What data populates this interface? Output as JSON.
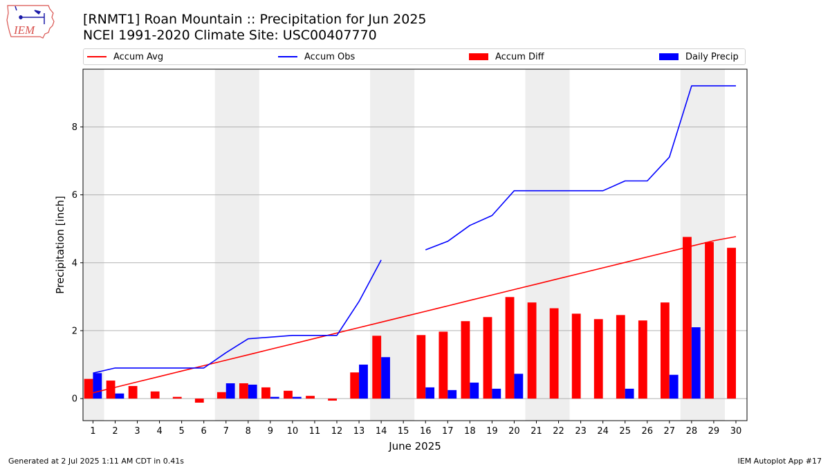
{
  "header": {
    "title_line1": "[RNMT1] Roan Mountain :: Precipitation for Jun 2025",
    "title_line2": "NCEI 1991-2020 Climate Site: USC00407770"
  },
  "logo": {
    "text": "IEM",
    "icon": "iowa-state-outline-logo"
  },
  "legend": {
    "accum_avg": "Accum Avg",
    "accum_obs": "Accum Obs",
    "accum_diff": "Accum Diff",
    "daily_precip": "Daily Precip"
  },
  "footer": {
    "left": "Generated at 2 Jul 2025 1:11 AM CDT in 0.41s",
    "right": "IEM Autoplot App #17"
  },
  "colors": {
    "accum_avg": "#ff0000",
    "accum_obs": "#0000ff",
    "accum_diff": "#ff0000",
    "daily_precip": "#0000ff",
    "weekend_shade": "#eeeeee",
    "grid": "#b0b0b0"
  },
  "chart_data": {
    "type": "bar",
    "xlabel": "June 2025",
    "ylabel": "Precipitation [inch]",
    "ylim": [
      -0.65,
      9.7
    ],
    "xlim": [
      0.55,
      30.5
    ],
    "yticks": [
      0,
      2,
      4,
      6,
      8
    ],
    "grid": "horizontal",
    "legend_placement": "top",
    "days": [
      1,
      2,
      3,
      4,
      5,
      6,
      7,
      8,
      9,
      10,
      11,
      12,
      13,
      14,
      15,
      16,
      17,
      18,
      19,
      20,
      21,
      22,
      23,
      24,
      25,
      26,
      27,
      28,
      29,
      30
    ],
    "weekend_day_groups": [
      [
        1
      ],
      [
        7,
        8
      ],
      [
        14,
        15
      ],
      [
        21,
        22
      ],
      [
        28,
        29
      ]
    ],
    "series": [
      {
        "name": "Accum Diff",
        "kind": "bar",
        "values": [
          0.58,
          0.53,
          0.37,
          0.21,
          0.05,
          -0.12,
          0.19,
          0.45,
          0.33,
          0.23,
          0.08,
          -0.06,
          0.77,
          1.85,
          null,
          1.87,
          1.97,
          2.28,
          2.4,
          2.99,
          2.83,
          2.66,
          2.5,
          2.34,
          2.46,
          2.3,
          2.83,
          4.76,
          4.61,
          4.44
        ]
      },
      {
        "name": "Daily Precip",
        "kind": "bar",
        "values": [
          0.75,
          0.15,
          0,
          0,
          0,
          0,
          0.45,
          0.41,
          0.05,
          0.05,
          0,
          0,
          1.0,
          1.22,
          null,
          0.33,
          0.25,
          0.47,
          0.29,
          0.73,
          0,
          0,
          0,
          0,
          0.29,
          0,
          0.7,
          2.1,
          0,
          0
        ]
      },
      {
        "name": "Accum Avg",
        "kind": "line",
        "values": [
          0.17,
          0.33,
          0.49,
          0.65,
          0.81,
          0.97,
          1.13,
          1.29,
          1.45,
          1.61,
          1.77,
          1.93,
          2.09,
          2.25,
          2.41,
          2.57,
          2.73,
          2.89,
          3.05,
          3.21,
          3.37,
          3.53,
          3.69,
          3.85,
          4.01,
          4.17,
          4.33,
          4.49,
          4.65,
          4.77
        ]
      },
      {
        "name": "Accum Obs",
        "kind": "line",
        "values": [
          0.75,
          0.9,
          0.9,
          0.9,
          0.9,
          0.9,
          1.35,
          1.76,
          1.81,
          1.86,
          1.86,
          1.86,
          2.86,
          4.08,
          null,
          4.38,
          4.63,
          5.1,
          5.39,
          6.12,
          6.12,
          6.12,
          6.12,
          6.12,
          6.41,
          6.41,
          7.11,
          9.21,
          9.21,
          9.21
        ]
      }
    ]
  }
}
